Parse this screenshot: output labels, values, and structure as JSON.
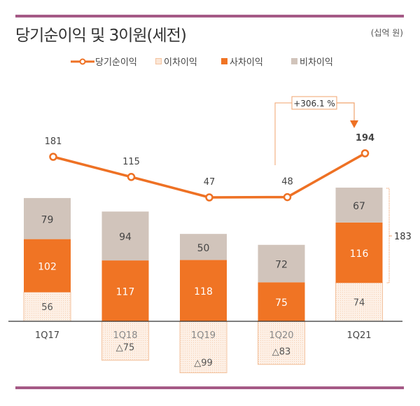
{
  "header": {
    "title": "당기순이익 및 3이원(세전)",
    "unit": "(십억 원)"
  },
  "colors": {
    "line": "#ee7124",
    "interest_margin": "#fbe6d6",
    "interest_margin_border": "#f3c29e",
    "expense_margin": "#f07424",
    "mortality_margin": "#d1c4bb",
    "rule": "#a55a86"
  },
  "chart_data": {
    "type": "bar",
    "subtype": "stacked-bar-with-line",
    "title": "당기순이익 및 3이원(세전)",
    "unit": "십억 원",
    "categories": [
      "1Q17",
      "1Q18",
      "1Q19",
      "1Q20",
      "1Q21"
    ],
    "legend": [
      "당기순이익",
      "이차이익",
      "사차이익",
      "비차이익"
    ],
    "legend_position": "top",
    "series": [
      {
        "name": "이차이익",
        "kind": "bar",
        "values": [
          56,
          -75,
          -99,
          -83,
          74
        ],
        "labels": [
          "56",
          "△75",
          "△99",
          "△83",
          "74"
        ]
      },
      {
        "name": "사차이익",
        "kind": "bar",
        "values": [
          102,
          117,
          118,
          75,
          116
        ],
        "labels": [
          "102",
          "117",
          "118",
          "75",
          "116"
        ]
      },
      {
        "name": "비차이익",
        "kind": "bar",
        "values": [
          79,
          94,
          50,
          72,
          67
        ],
        "labels": [
          "79",
          "94",
          "50",
          "72",
          "67"
        ]
      },
      {
        "name": "당기순이익",
        "kind": "line",
        "values": [
          181,
          115,
          47,
          48,
          194
        ],
        "labels": [
          "181",
          "115",
          "47",
          "48",
          "194"
        ]
      }
    ],
    "annotations": {
      "growth_label": "+306.1 %",
      "growth_from": "1Q20",
      "growth_to": "1Q21",
      "bracket_label": "183",
      "bracket_category": "1Q21"
    },
    "grid": false
  }
}
